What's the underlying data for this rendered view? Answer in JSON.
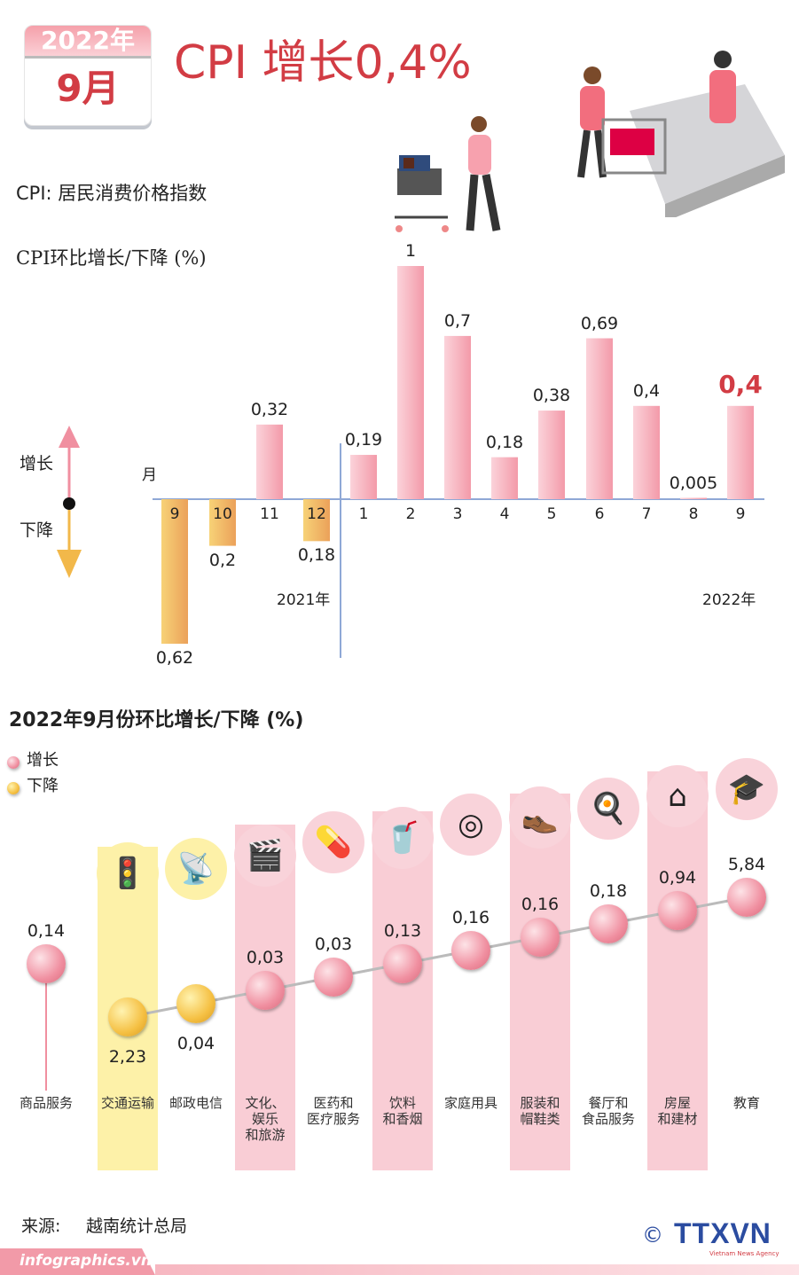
{
  "header": {
    "calendar_year": "2022年",
    "calendar_month": "9月",
    "title": "CPI 增长0,4%",
    "definition": "CPI: 居民消费价格指数"
  },
  "colors": {
    "increase": "#f6a7b3",
    "decrease": "#f2b84a",
    "title": "#d23c44",
    "column_pink": "#f9cdd5",
    "column_yellow": "#fdf1a8"
  },
  "chart_data": [
    {
      "type": "bar",
      "title": "CPI环比增长/下降 (%)",
      "xlabel": "月",
      "legend": {
        "up": "增长",
        "down": "下降"
      },
      "year_labels": [
        "2021年",
        "2022年"
      ],
      "categories": [
        "9",
        "10",
        "11",
        "12",
        "1",
        "2",
        "3",
        "4",
        "5",
        "6",
        "7",
        "8",
        "9"
      ],
      "values": [
        -0.62,
        -0.2,
        0.32,
        -0.18,
        0.19,
        1,
        0.7,
        0.18,
        0.38,
        0.69,
        0.4,
        0.005,
        0.4
      ],
      "labels": [
        "0,62",
        "0,2",
        "0,32",
        "0,18",
        "0,19",
        "1",
        "0,7",
        "0,18",
        "0,38",
        "0,69",
        "0,4",
        "0,005",
        "0,4"
      ],
      "highlight_index": 12
    },
    {
      "type": "scatter",
      "title": "2022年9月份环比增长/下降 (%)",
      "legend": [
        "增长",
        "下降"
      ],
      "categories": [
        "商品服务",
        "交通运输",
        "邮政电信",
        "文化、娱乐和旅游",
        "医药和医疗服务",
        "饮料和香烟",
        "家庭用具",
        "服装和帽鞋类",
        "餐厅和食品服务",
        "房屋和建材",
        "教育"
      ],
      "category_lines": [
        [
          "商品服务"
        ],
        [
          "交通运输"
        ],
        [
          "邮政电信"
        ],
        [
          "文化、",
          "娱乐",
          "和旅游"
        ],
        [
          "医药和",
          "医疗服务"
        ],
        [
          "饮料",
          "和香烟"
        ],
        [
          "家庭用具"
        ],
        [
          "服装和",
          "帽鞋类"
        ],
        [
          "餐厅和",
          "食品服务"
        ],
        [
          "房屋",
          "和建材"
        ],
        [
          "教育"
        ]
      ],
      "values": [
        0.14,
        -2.23,
        -0.04,
        0.03,
        0.03,
        0.13,
        0.16,
        0.16,
        0.18,
        0.94,
        5.84
      ],
      "labels": [
        "0,14",
        "2,23",
        "0,04",
        "0,03",
        "0,03",
        "0,13",
        "0,16",
        "0,16",
        "0,18",
        "0,94",
        "5,84"
      ],
      "icons": [
        "",
        "traffic-light-icon",
        "antenna-icon",
        "film-icon",
        "pill-icon",
        "drink-icon",
        "washing-machine-icon",
        "clothes-icon",
        "meal-icon",
        "house-icon",
        "graduation-cap-icon"
      ]
    }
  ],
  "footer": {
    "source_label": "来源:",
    "source": "越南统计总局",
    "site": "infographics.vn",
    "logo": "TTXVN",
    "logo_sub": "Vietnam News Agency",
    "copyright": "©"
  }
}
